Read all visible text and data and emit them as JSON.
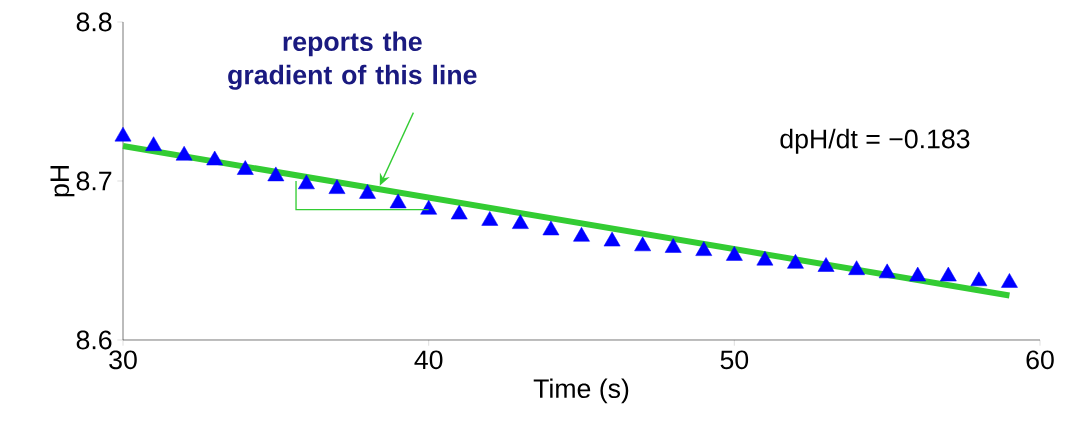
{
  "chart_data": {
    "type": "scatter",
    "xlabel": "Time (s)",
    "ylabel": "pH",
    "x": [
      30,
      31,
      32,
      33,
      34,
      35,
      36,
      37,
      38,
      39,
      40,
      41,
      42,
      43,
      44,
      45,
      46,
      47,
      48,
      49,
      50,
      51,
      52,
      53,
      54,
      55,
      56,
      57,
      58,
      59
    ],
    "series": [
      {
        "type": "line",
        "color": "#33cc33",
        "x": [
          30,
          59
        ],
        "values": [
          8.722,
          8.628
        ]
      },
      {
        "type": "scatter",
        "color": "#0000ff",
        "marker": "triangle",
        "values": [
          8.728,
          8.722,
          8.716,
          8.713,
          8.707,
          8.703,
          8.698,
          8.695,
          8.692,
          8.686,
          8.682,
          8.679,
          8.675,
          8.673,
          8.669,
          8.665,
          8.662,
          8.659,
          8.658,
          8.656,
          8.653,
          8.65,
          8.648,
          8.646,
          8.644,
          8.642,
          8.64,
          8.64,
          8.637,
          8.636
        ]
      }
    ],
    "annotations": [
      {
        "text": "reports the gradient of this line",
        "x": 38.4,
        "y": 8.697
      },
      "dpH/dt = −0.183"
    ],
    "xlim": [
      30,
      60
    ],
    "ylim": [
      8.6,
      8.8
    ],
    "xticks": [
      30,
      40,
      50,
      60
    ],
    "yticks": [
      8.6,
      8.7,
      8.8
    ]
  }
}
